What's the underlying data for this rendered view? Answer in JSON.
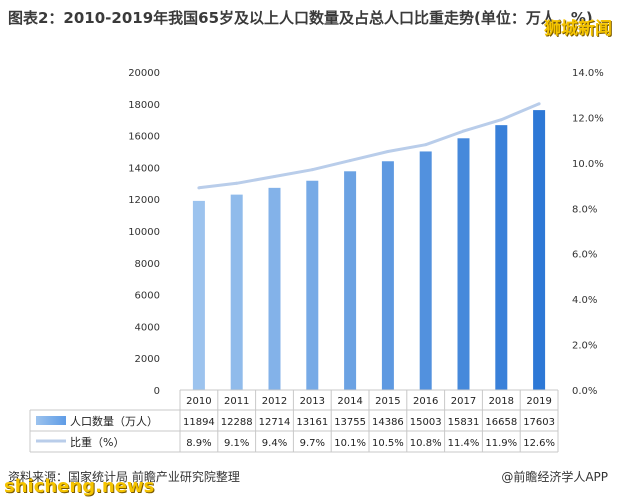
{
  "header": {
    "title": "图表2：2010-2019年我国65岁及以上人口数量及占总人口比重走势(单位：万人，%)",
    "badge": "狮城新闻"
  },
  "footer": {
    "source": "资料来源：国家统计局 前瞻产业研究院整理",
    "publisher": "@前瞻经济学人APP",
    "brand": "shicheng.news"
  },
  "chart_data": {
    "type": "bar",
    "categories": [
      "2010",
      "2011",
      "2012",
      "2013",
      "2014",
      "2015",
      "2016",
      "2017",
      "2018",
      "2019"
    ],
    "series": [
      {
        "name": "人口数量（万人）",
        "type": "bar",
        "axis": "left",
        "values": [
          11894,
          12288,
          12714,
          13161,
          13755,
          14386,
          15003,
          15831,
          16658,
          17603
        ],
        "table_values": [
          "11894",
          "12288",
          "12714",
          "13161",
          "13755",
          "14386",
          "15003",
          "15831",
          "16658",
          "17603"
        ]
      },
      {
        "name": "比重（%）",
        "type": "line",
        "axis": "right",
        "values": [
          8.9,
          9.1,
          9.4,
          9.7,
          10.1,
          10.5,
          10.8,
          11.4,
          11.9,
          12.6
        ],
        "table_values": [
          "8.9%",
          "9.1%",
          "9.4%",
          "9.7%",
          "10.1%",
          "10.5%",
          "10.8%",
          "11.4%",
          "11.9%",
          "12.6%"
        ]
      }
    ],
    "ylim_left": [
      0,
      20000
    ],
    "yticks_left": [
      "0",
      "2000",
      "4000",
      "6000",
      "8000",
      "10000",
      "12000",
      "14000",
      "16000",
      "18000",
      "20000"
    ],
    "ylim_right": [
      0,
      14
    ],
    "yticks_right": [
      "0.0%",
      "2.0%",
      "4.0%",
      "6.0%",
      "8.0%",
      "10.0%",
      "12.0%",
      "14.0%"
    ],
    "grid": false,
    "legend": "data-table",
    "colors": {
      "bar_light": "#9cc3ee",
      "bar_dark": "#2f78d6",
      "line": "#b9cdea"
    }
  }
}
